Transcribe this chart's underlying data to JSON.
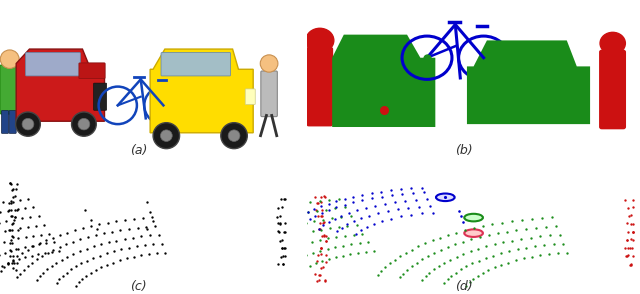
{
  "fig_width": 6.4,
  "fig_height": 2.94,
  "dpi": 100,
  "background": "#ffffff",
  "label_a": "(a)",
  "label_b": "(b)",
  "label_c": "(c)",
  "label_d": "(d)",
  "label_fontsize": 9,
  "colors": {
    "car_green": "#1a8c1a",
    "bike_blue": "#0000cc",
    "person_red": "#cc1111",
    "black": "#111111",
    "bike_blue_light": "#3333cc",
    "green_circle_fill": "#ccffcc",
    "blue_circle_fill": "#ccccff",
    "pink_circle_fill": "#ffcccc"
  }
}
